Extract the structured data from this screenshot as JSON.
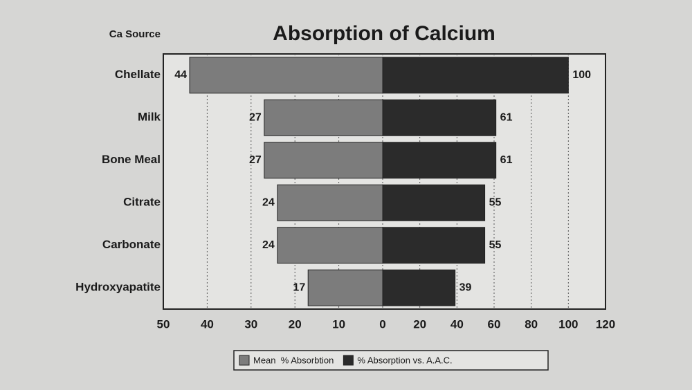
{
  "chart_data": {
    "type": "butterfly-bar",
    "title": "Absorption of Calcium",
    "y_label": "Ca Source",
    "categories": [
      "Chellate",
      "Milk",
      "Bone Meal",
      "Citrate",
      "Carbonate",
      "Hydroxyapatite"
    ],
    "series": [
      {
        "name": "Mean  % Absorbtion",
        "color": "#7c7c7c",
        "axis": "x",
        "values": [
          44,
          27,
          27,
          24,
          24,
          17
        ]
      },
      {
        "name": "% Absorption vs. A.A.C.",
        "color": "#2b2b2b",
        "axis": "x2",
        "values": [
          100,
          61,
          61,
          55,
          55,
          39
        ]
      }
    ],
    "xlim": [
      0,
      50
    ],
    "xticks": [
      50,
      40,
      30,
      20,
      10
    ],
    "x2lim": [
      0,
      120
    ],
    "x2ticks": [
      0,
      20,
      40,
      60,
      80,
      100,
      120
    ],
    "grid": true
  }
}
